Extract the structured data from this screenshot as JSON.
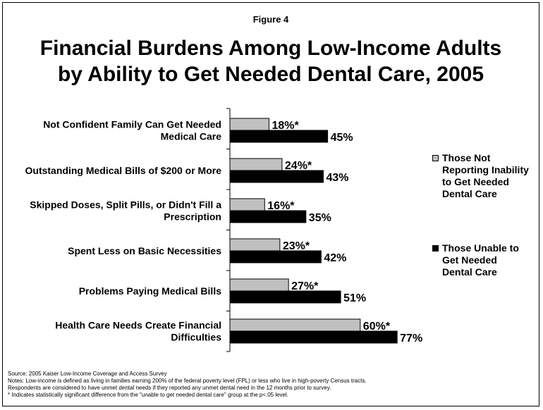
{
  "figure_label": "Figure 4",
  "title_line1": "Financial Burdens Among Low-Income Adults",
  "title_line2": "by Ability to Get Needed Dental Care, 2005",
  "chart_data": {
    "type": "bar",
    "orientation": "horizontal",
    "categories": [
      [
        "Not Confident Family Can Get Needed",
        "Medical Care"
      ],
      [
        "Outstanding Medical Bills of $200 or More"
      ],
      [
        "Skipped Doses, Split Pills, or Didn't Fill a",
        "Prescription"
      ],
      [
        "Spent Less on Basic Necessities"
      ],
      [
        "Problems Paying Medical Bills"
      ],
      [
        "Health Care Needs Create Financial",
        "Difficulties"
      ]
    ],
    "series": [
      {
        "name": "Those Not Reporting Inability to Get Needed Dental Care",
        "legend_lines": [
          "Those Not",
          "Reporting Inability",
          "to Get Needed",
          "Dental Care"
        ],
        "color": "#c0c0c0",
        "values": [
          18,
          24,
          16,
          23,
          27,
          60
        ],
        "labels": [
          "18%*",
          "24%*",
          "16%*",
          "23%*",
          "27%*",
          "60%*"
        ]
      },
      {
        "name": "Those Unable to Get Needed Dental Care",
        "legend_lines": [
          "Those Unable to",
          "Get Needed",
          "Dental Care"
        ],
        "color": "#000000",
        "values": [
          45,
          43,
          35,
          42,
          51,
          77
        ],
        "labels": [
          "45%",
          "43%",
          "35%",
          "42%",
          "51%",
          "77%"
        ]
      }
    ],
    "xlim": [
      0,
      100
    ],
    "grid": false,
    "legend_position": "right"
  },
  "notes": [
    "Source: 2005 Kaiser Low-Income Coverage and Access Survey",
    "Notes: Low-income is defined as living in families earning 200% of the federal poverty level (FPL) or less who live in high-poverty Census tracts.",
    "Respondents are considered to have unmet dental needs if they reported any unmet dental need in the 12 months prior to survey.",
    "* Indicates statistically significant difference from the \"unable to get needed dental care\" group at the p<.05 level."
  ]
}
